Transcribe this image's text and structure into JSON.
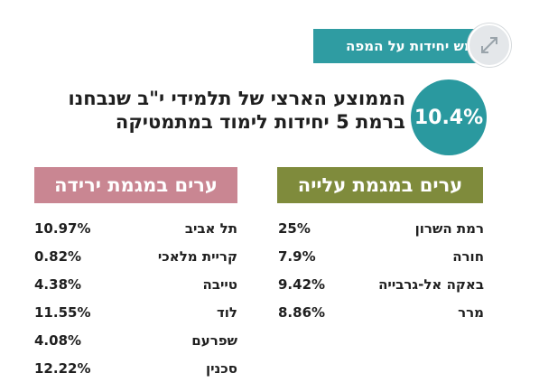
{
  "map_button": {
    "label": "חמש יחידות על המפה"
  },
  "expand_icon": "expand-arrows-icon",
  "national_average": {
    "value": "10.4%",
    "text": "הממוצע הארצי של תלמידי י\"ב שנבחנו ברמת 5 יחידות לימוד במתמטיקה"
  },
  "rising": {
    "title": "ערים במגמת עלייה",
    "rows": [
      {
        "city": "רמת השרון",
        "value": "25%"
      },
      {
        "city": "חורה",
        "value": "7.9%"
      },
      {
        "city": "באקה אל-גרבייה",
        "value": "9.42%"
      },
      {
        "city": "מרר",
        "value": "8.86%"
      }
    ]
  },
  "falling": {
    "title": "ערים במגמת ירידה",
    "rows": [
      {
        "city": "תל אביב",
        "value": "10.97%"
      },
      {
        "city": "קריית מלאכי",
        "value": "0.82%"
      },
      {
        "city": "טייבה",
        "value": "4.38%"
      },
      {
        "city": "לוד",
        "value": "11.55%"
      },
      {
        "city": "שפרעם",
        "value": "4.08%"
      },
      {
        "city": "סכנין",
        "value": "12.22%"
      }
    ]
  },
  "colors": {
    "teal": "#2f9ca2",
    "olive": "#7f8b3c",
    "rose": "#c98692"
  }
}
